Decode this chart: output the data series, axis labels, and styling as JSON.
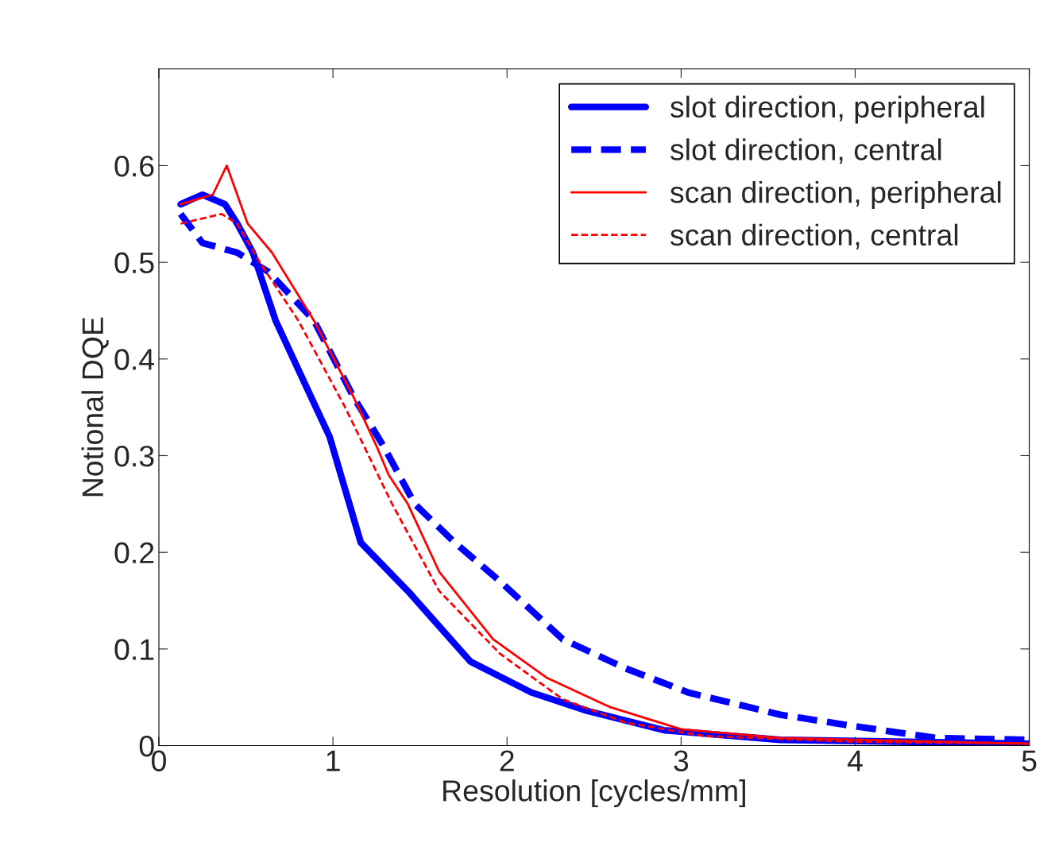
{
  "chart_data": {
    "type": "line",
    "xlabel": "Resolution [cycles/mm]",
    "ylabel": "Notional DQE",
    "xlim": [
      0,
      5
    ],
    "xticks": [
      0,
      1,
      2,
      3,
      4,
      5
    ],
    "ylim": [
      0,
      0.7
    ],
    "yticks": [
      0,
      0.1,
      0.2,
      0.3,
      0.4,
      0.5,
      0.6
    ],
    "grid": false,
    "legend": "top right",
    "series": [
      {
        "name": "slot direction, peripheral",
        "color": "#0000ff",
        "line_style": "solid",
        "x": [
          0.125,
          0.25,
          0.38,
          0.45,
          0.54,
          0.67,
          0.85,
          0.98,
          1.16,
          1.43,
          1.79,
          2.14,
          2.46,
          2.9,
          3.57,
          5
        ],
        "values": [
          0.56,
          0.57,
          0.56,
          0.54,
          0.51,
          0.44,
          0.37,
          0.32,
          0.21,
          0.16,
          0.087,
          0.055,
          0.036,
          0.016,
          0.006,
          0.002
        ]
      },
      {
        "name": "slot direction, central",
        "color": "#0000ff",
        "line_style": "dashed",
        "x": [
          0.125,
          0.25,
          0.45,
          0.63,
          0.89,
          1.12,
          1.29,
          1.47,
          1.7,
          1.96,
          2.32,
          2.68,
          3.04,
          3.57,
          4.0,
          4.46,
          5
        ],
        "values": [
          0.55,
          0.52,
          0.51,
          0.49,
          0.44,
          0.36,
          0.31,
          0.25,
          0.21,
          0.17,
          0.11,
          0.08,
          0.055,
          0.032,
          0.02,
          0.008,
          0.006
        ]
      },
      {
        "name": "scan direction, peripheral",
        "color": "#ff0000",
        "line_style": "solid",
        "x": [
          0.125,
          0.31,
          0.39,
          0.51,
          0.65,
          0.89,
          1.12,
          1.25,
          1.32,
          1.43,
          1.61,
          1.92,
          2.23,
          2.59,
          3,
          3.57,
          5
        ],
        "values": [
          0.56,
          0.57,
          0.6,
          0.54,
          0.51,
          0.44,
          0.36,
          0.31,
          0.28,
          0.25,
          0.18,
          0.11,
          0.07,
          0.04,
          0.017,
          0.008,
          0.002
        ]
      },
      {
        "name": "scan direction, central",
        "color": "#ff0000",
        "line_style": "dashed",
        "x": [
          0.125,
          0.36,
          0.45,
          0.58,
          0.8,
          1.07,
          1.34,
          1.61,
          1.96,
          2.32,
          2.68,
          3.13,
          4,
          5
        ],
        "values": [
          0.54,
          0.55,
          0.54,
          0.5,
          0.44,
          0.35,
          0.25,
          0.16,
          0.095,
          0.048,
          0.024,
          0.01,
          0.004,
          0.002
        ]
      }
    ]
  }
}
